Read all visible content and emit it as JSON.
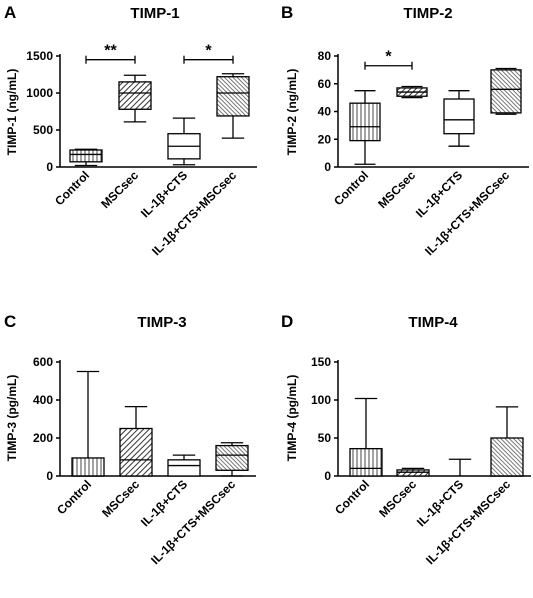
{
  "chart_data": [
    {
      "panel_label": "A",
      "title": "TIMP-1",
      "type": "boxplot",
      "ylabel": "TIMP-1 (ng/mL)",
      "ylim": [
        0,
        1500
      ],
      "yticks": [
        0,
        500,
        1000,
        1500
      ],
      "categories": [
        "Control",
        "MSCsec",
        "IL-1β+CTS",
        "IL-1β+CTS+MSCsec"
      ],
      "boxes": [
        {
          "min": 20,
          "q1": 70,
          "median": 170,
          "q3": 230,
          "max": 240,
          "pattern": "vlines"
        },
        {
          "min": 610,
          "q1": 780,
          "median": 1000,
          "q3": 1150,
          "max": 1240,
          "pattern": "diag-dense"
        },
        {
          "min": 30,
          "q1": 110,
          "median": 280,
          "q3": 450,
          "max": 660,
          "pattern": "none"
        },
        {
          "min": 390,
          "q1": 690,
          "median": 1000,
          "q3": 1220,
          "max": 1260,
          "pattern": "fine-diag"
        }
      ],
      "annotations": [
        {
          "from": 0,
          "to": 1,
          "text": "**",
          "y": 1450
        },
        {
          "from": 2,
          "to": 3,
          "text": "*",
          "y": 1450
        }
      ]
    },
    {
      "panel_label": "B",
      "title": "TIMP-2",
      "type": "boxplot",
      "ylabel": "TIMP-2 (ng/mL)",
      "ylim": [
        0,
        80
      ],
      "yticks": [
        0,
        20,
        40,
        60,
        80
      ],
      "categories": [
        "Control",
        "MSCsec",
        "IL-1β+CTS",
        "IL-1β+CTS+MSCsec"
      ],
      "boxes": [
        {
          "min": 2,
          "q1": 19,
          "median": 29,
          "q3": 46,
          "max": 55,
          "pattern": "vlines"
        },
        {
          "min": 50,
          "q1": 51,
          "median": 54,
          "q3": 57,
          "max": 58,
          "pattern": "diag-dense"
        },
        {
          "min": 15,
          "q1": 24,
          "median": 34,
          "q3": 49,
          "max": 55,
          "pattern": "none"
        },
        {
          "min": 38,
          "q1": 39,
          "median": 56,
          "q3": 70,
          "max": 71,
          "pattern": "fine-diag"
        }
      ],
      "annotations": [
        {
          "from": 0,
          "to": 1,
          "text": "*",
          "y": 73
        }
      ]
    },
    {
      "panel_label": "C",
      "title": "TIMP-3",
      "type": "bar",
      "ylabel": "TIMP-3 (pg/mL)",
      "ylim": [
        0,
        600
      ],
      "yticks": [
        0,
        200,
        400,
        600
      ],
      "categories": [
        "Control",
        "MSCsec",
        "IL-1β+CTS",
        "IL-1β+CTS+MSCsec"
      ],
      "boxes": [
        {
          "min": 0,
          "q1": 0,
          "median": 0,
          "q3": 95,
          "max": 550,
          "pattern": "vlines"
        },
        {
          "min": 0,
          "q1": 0,
          "median": 85,
          "q3": 250,
          "max": 365,
          "pattern": "diag-dense"
        },
        {
          "min": 0,
          "q1": 0,
          "median": 55,
          "q3": 85,
          "max": 110,
          "pattern": "none"
        },
        {
          "min": 0,
          "q1": 30,
          "median": 110,
          "q3": 160,
          "max": 175,
          "pattern": "fine-diag"
        }
      ],
      "annotations": []
    },
    {
      "panel_label": "D",
      "title": "TIMP-4",
      "type": "bar",
      "ylabel": "TIMP-4 (pg/mL)",
      "ylim": [
        0,
        150
      ],
      "yticks": [
        0,
        50,
        100,
        150
      ],
      "categories": [
        "Control",
        "MSCsec",
        "IL-1β+CTS",
        "IL-1β+CTS+MSCsec"
      ],
      "boxes": [
        {
          "min": 0,
          "q1": 0,
          "median": 10,
          "q3": 36,
          "max": 102,
          "pattern": "vlines"
        },
        {
          "min": 0,
          "q1": 0,
          "median": 5,
          "q3": 8,
          "max": 10,
          "pattern": "diag-dense"
        },
        {
          "min": 0,
          "q1": 0,
          "median": 0,
          "q3": 0,
          "max": 22,
          "pattern": "none"
        },
        {
          "min": 0,
          "q1": 0,
          "median": 0,
          "q3": 50,
          "max": 91,
          "pattern": "fine-diag"
        }
      ],
      "annotations": []
    }
  ]
}
